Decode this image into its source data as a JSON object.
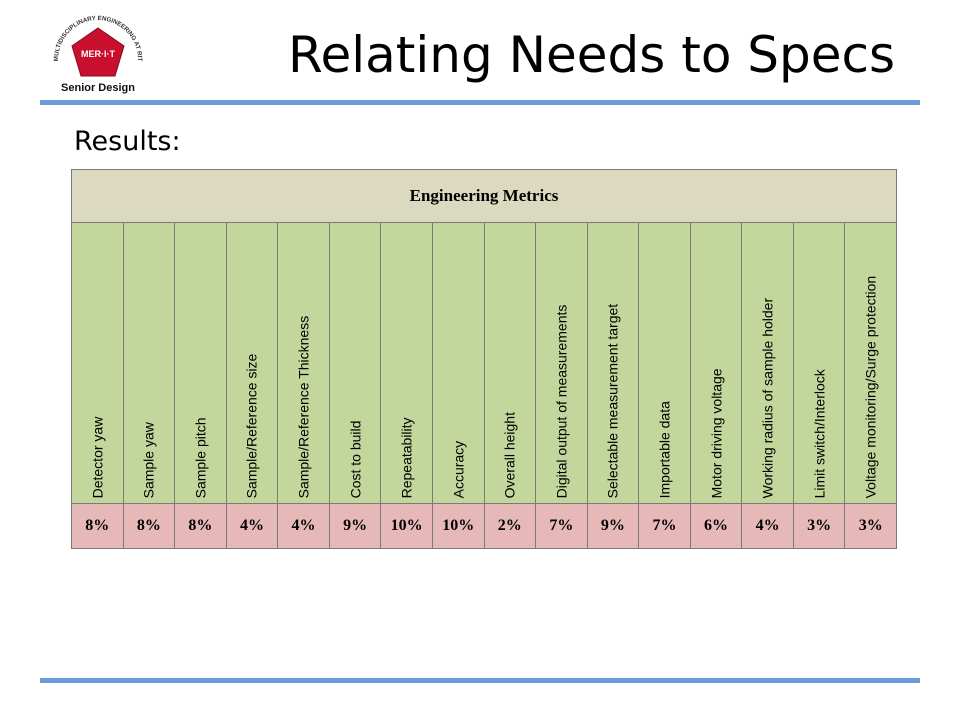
{
  "slide": {
    "title": "Relating Needs to Specs",
    "subtitle": "Results:"
  },
  "logo": {
    "ring_text": "MULTIDISCIPLINARY ENGINEERING AT RIT",
    "center_text": "MER·I·T",
    "caption": "Senior Design",
    "color": "#c8102e"
  },
  "table": {
    "header": "Engineering Metrics",
    "metrics": [
      {
        "name": "Detector yaw",
        "weight": "8%"
      },
      {
        "name": "Sample yaw",
        "weight": "8%"
      },
      {
        "name": "Sample pitch",
        "weight": "8%"
      },
      {
        "name": "Sample/Reference size",
        "weight": "4%"
      },
      {
        "name": "Sample/Reference Thickness",
        "weight": "4%"
      },
      {
        "name": "Cost to build",
        "weight": "9%"
      },
      {
        "name": "Repeatability",
        "weight": "10%"
      },
      {
        "name": "Accuracy",
        "weight": "10%"
      },
      {
        "name": "Overall height",
        "weight": "2%"
      },
      {
        "name": "Digital output of measurements",
        "weight": "7%"
      },
      {
        "name": "Selectable measurement target",
        "weight": "9%"
      },
      {
        "name": "Importable data",
        "weight": "7%"
      },
      {
        "name": "Motor driving voltage",
        "weight": "6%"
      },
      {
        "name": "Working radius of sample holder",
        "weight": "4%"
      },
      {
        "name": "Limit switch/Interlock",
        "weight": "3%"
      },
      {
        "name": "Voltage monitoring/Surge protection",
        "weight": "3%"
      }
    ]
  },
  "colors": {
    "header_bg": "#dcd9c1",
    "name_bg": "#c3d69b",
    "weight_bg": "#e6b9b8",
    "rule": "#6b9bd8"
  }
}
